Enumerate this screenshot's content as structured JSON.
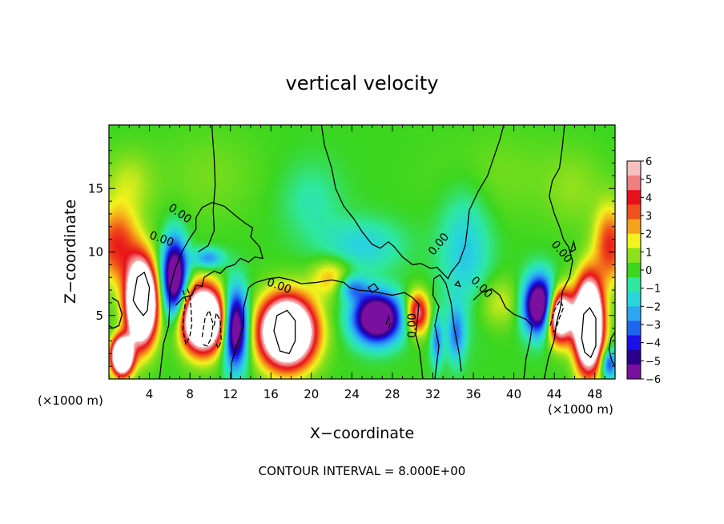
{
  "chart_data": {
    "type": "heatmap",
    "title": "vertical velocity",
    "xlabel": "X−coordinate",
    "ylabel": "Z−coordinate",
    "x_unit_left": "(×1000 m)",
    "x_unit_right": "(×1000 m)",
    "footer": "CONTOUR INTERVAL = 8.000E+00",
    "xlim": [
      0,
      50
    ],
    "ylim": [
      0,
      20
    ],
    "x_ticks": [
      4,
      8,
      12,
      16,
      20,
      24,
      28,
      32,
      36,
      40,
      44,
      48
    ],
    "y_ticks": [
      5,
      10,
      15
    ],
    "colorbar": {
      "min": -6,
      "max": 6,
      "labels": [
        "6",
        "5",
        "4",
        "3",
        "2",
        "1",
        "0",
        "−1",
        "−2",
        "−3",
        "−4",
        "−5",
        "−6"
      ],
      "colors": [
        "#7a0fa0",
        "#2a008a",
        "#1a10e8",
        "#1e66f0",
        "#2ea6f2",
        "#28d6dc",
        "#2ee8a0",
        "#3bd61f",
        "#8ce01c",
        "#f2f21c",
        "#f6a21a",
        "#f0501a",
        "#e8101a",
        "#f08080",
        "#f6c0c0"
      ]
    },
    "contour_labels": [
      {
        "text": "0.00",
        "x": 7.0,
        "y": 13.0,
        "angle": 35
      },
      {
        "text": "0.00",
        "x": 5.2,
        "y": 11.0,
        "angle": 20
      },
      {
        "text": "0.00",
        "x": 16.8,
        "y": 7.3,
        "angle": 20
      },
      {
        "text": "0.00",
        "x": 30.0,
        "y": 4.2,
        "angle": -90
      },
      {
        "text": "0.00",
        "x": 32.6,
        "y": 10.6,
        "angle": -50
      },
      {
        "text": "0.00",
        "x": 36.8,
        "y": 7.2,
        "angle": 45
      },
      {
        "text": "0.00",
        "x": 44.7,
        "y": 10.0,
        "angle": 50
      }
    ],
    "features": [
      {
        "x": 3.2,
        "z": 6.0,
        "rx": 1.4,
        "rz": 3.0,
        "w": 16
      },
      {
        "x": 1.3,
        "z": 1.8,
        "rx": 1.0,
        "rz": 1.4,
        "w": 14
      },
      {
        "x": 0.8,
        "z": 10.5,
        "rx": 2.2,
        "rz": 3.0,
        "w": 4
      },
      {
        "x": 9.3,
        "z": 4.7,
        "rx": 2.0,
        "rz": 2.4,
        "w": 14
      },
      {
        "x": 6.5,
        "z": 8.0,
        "rx": 1.2,
        "rz": 3.0,
        "w": -8
      },
      {
        "x": 12.5,
        "z": 4.0,
        "rx": 1.2,
        "rz": 3.0,
        "w": -8
      },
      {
        "x": 9.8,
        "z": 9.5,
        "rx": 1.5,
        "rz": 0.8,
        "w": -3
      },
      {
        "x": 17.6,
        "z": 3.7,
        "rx": 2.6,
        "rz": 2.6,
        "w": 14
      },
      {
        "x": 22.0,
        "z": 8.0,
        "rx": 2.0,
        "rz": 1.5,
        "w": 2.5
      },
      {
        "x": 26.5,
        "z": 4.8,
        "rx": 2.3,
        "rz": 1.9,
        "w": -9
      },
      {
        "x": 24.0,
        "z": 7.2,
        "rx": 1.5,
        "rz": 1.0,
        "w": -3
      },
      {
        "x": 30.5,
        "z": 5.2,
        "rx": 1.1,
        "rz": 1.6,
        "w": 5.5
      },
      {
        "x": 32.4,
        "z": 3.0,
        "rx": 0.6,
        "rz": 2.0,
        "w": -3
      },
      {
        "x": 34.3,
        "z": 3.5,
        "rx": 0.9,
        "rz": 2.2,
        "w": -3
      },
      {
        "x": 35.2,
        "z": 10.0,
        "rx": 2.5,
        "rz": 5.0,
        "w": -2
      },
      {
        "x": 25.0,
        "z": 10.5,
        "rx": 4.0,
        "rz": 2.0,
        "w": -1.8
      },
      {
        "x": 20.0,
        "z": 14.0,
        "rx": 3.0,
        "rz": 3.0,
        "w": -1.0
      },
      {
        "x": 38.5,
        "z": 6.0,
        "rx": 2.5,
        "rz": 2.0,
        "w": 1.5
      },
      {
        "x": 42.6,
        "z": 5.8,
        "rx": 1.6,
        "rz": 2.2,
        "w": -9
      },
      {
        "x": 44.5,
        "z": 5.0,
        "rx": 1.3,
        "rz": 2.0,
        "w": 11
      },
      {
        "x": 47.4,
        "z": 4.3,
        "rx": 1.3,
        "rz": 3.3,
        "w": 16
      },
      {
        "x": 49.5,
        "z": 10.5,
        "rx": 1.5,
        "rz": 3.0,
        "w": 4
      },
      {
        "x": 49.4,
        "z": 1.2,
        "rx": 0.8,
        "rz": 1.2,
        "w": -4
      },
      {
        "x": 10.0,
        "z": 16.0,
        "rx": 5.0,
        "rz": 3.5,
        "w": 0.6
      },
      {
        "x": 38.0,
        "z": 16.0,
        "rx": 6.0,
        "rz": 3.5,
        "w": 0.6
      },
      {
        "x": 46.0,
        "z": 15.0,
        "rx": 3.0,
        "rz": 3.0,
        "w": 0.8
      },
      {
        "x": 2.0,
        "z": 15.5,
        "rx": 2.5,
        "rz": 2.5,
        "w": 1.2
      }
    ],
    "contours": [
      {
        "style": "solid",
        "points": [
          [
            12.1,
            0
          ],
          [
            12.1,
            1.2
          ],
          [
            12.6,
            2.6
          ],
          [
            13.3,
            4.2
          ],
          [
            13.3,
            5.6
          ],
          [
            13.8,
            7.2
          ],
          [
            14.5,
            7.6
          ],
          [
            15.8,
            7.9
          ],
          [
            16.8,
            8.0
          ],
          [
            18.0,
            7.8
          ],
          [
            19.0,
            7.5
          ],
          [
            20.5,
            7.6
          ],
          [
            22.0,
            7.8
          ],
          [
            23.2,
            7.6
          ],
          [
            23.8,
            7.2
          ],
          [
            24.6,
            7.0
          ],
          [
            26.0,
            6.9
          ],
          [
            28.0,
            6.6
          ],
          [
            29.2,
            6.8
          ],
          [
            30.0,
            6.4
          ],
          [
            30.6,
            5.9
          ],
          [
            30.5,
            4.8
          ],
          [
            30.3,
            3.5
          ],
          [
            30.7,
            2.2
          ],
          [
            30.9,
            0.8
          ],
          [
            31.0,
            0
          ]
        ]
      },
      {
        "style": "solid",
        "points": [
          [
            5.0,
            0
          ],
          [
            5.2,
            1.4
          ],
          [
            5.4,
            2.8
          ],
          [
            5.9,
            4.2
          ],
          [
            6.0,
            5.6
          ],
          [
            6.0,
            7.0
          ],
          [
            6.5,
            8.6
          ],
          [
            7.2,
            10.0
          ],
          [
            8.0,
            11.1
          ],
          [
            8.6,
            11.8
          ],
          [
            8.6,
            12.7
          ],
          [
            9.2,
            13.5
          ],
          [
            10.2,
            13.9
          ],
          [
            11.4,
            13.6
          ],
          [
            12.6,
            12.8
          ],
          [
            13.4,
            12.3
          ],
          [
            14.2,
            11.9
          ],
          [
            14.0,
            11.2
          ],
          [
            14.9,
            10.4
          ],
          [
            15.2,
            9.5
          ],
          [
            14.4,
            9.6
          ],
          [
            13.8,
            9.2
          ],
          [
            13.0,
            9.5
          ],
          [
            12.4,
            9.0
          ],
          [
            11.6,
            8.8
          ],
          [
            11.0,
            8.3
          ],
          [
            10.4,
            8.5
          ],
          [
            9.4,
            8.0
          ],
          [
            9.2,
            7.3
          ],
          [
            8.6,
            7.4
          ],
          [
            8.2,
            6.6
          ],
          [
            7.3,
            6.4
          ],
          [
            6.6,
            5.8
          ]
        ]
      },
      {
        "style": "solid",
        "points": [
          [
            8.8,
            10.0
          ],
          [
            9.8,
            10.5
          ],
          [
            10.4,
            11.7
          ],
          [
            10.3,
            13.3
          ],
          [
            10.5,
            15.3
          ],
          [
            10.4,
            17.3
          ],
          [
            10.2,
            19.6
          ],
          [
            10.2,
            20.0
          ]
        ]
      },
      {
        "style": "solid",
        "points": [
          [
            21.0,
            20.0
          ],
          [
            21.3,
            18.4
          ],
          [
            22.0,
            16.6
          ],
          [
            22.4,
            15.0
          ],
          [
            23.2,
            13.6
          ],
          [
            24.2,
            12.6
          ],
          [
            25.0,
            11.6
          ],
          [
            26.0,
            10.6
          ],
          [
            26.8,
            10.3
          ],
          [
            27.6,
            10.8
          ],
          [
            28.2,
            10.4
          ],
          [
            29.0,
            9.6
          ],
          [
            30.0,
            9.0
          ],
          [
            30.8,
            9.1
          ],
          [
            31.8,
            8.7
          ],
          [
            32.4,
            8.8
          ],
          [
            33.5,
            7.9
          ],
          [
            33.8,
            8.4
          ],
          [
            34.6,
            9.2
          ],
          [
            35.2,
            10.5
          ],
          [
            35.4,
            11.8
          ],
          [
            35.6,
            13.3
          ],
          [
            36.5,
            14.8
          ],
          [
            37.4,
            16.0
          ],
          [
            38.0,
            17.4
          ],
          [
            38.6,
            18.8
          ],
          [
            39.0,
            20.0
          ]
        ]
      },
      {
        "style": "solid",
        "points": [
          [
            45.0,
            20.0
          ],
          [
            44.8,
            18.3
          ],
          [
            44.5,
            16.6
          ],
          [
            43.8,
            15.6
          ],
          [
            43.5,
            14.4
          ],
          [
            44.0,
            13.0
          ],
          [
            44.5,
            12.0
          ],
          [
            44.9,
            11.0
          ],
          [
            45.4,
            10.4
          ],
          [
            45.8,
            9.3
          ],
          [
            45.5,
            8.0
          ],
          [
            44.8,
            6.9
          ],
          [
            44.6,
            5.6
          ],
          [
            44.2,
            4.4
          ],
          [
            44.0,
            3.1
          ],
          [
            43.4,
            1.6
          ],
          [
            43.0,
            0
          ]
        ]
      },
      {
        "style": "solid",
        "points": [
          [
            36.0,
            6.2
          ],
          [
            36.8,
            6.8
          ],
          [
            37.8,
            7.1
          ],
          [
            38.6,
            6.6
          ],
          [
            39.2,
            5.6
          ],
          [
            40.0,
            5.1
          ],
          [
            41.2,
            4.7
          ],
          [
            41.8,
            4.2
          ],
          [
            41.6,
            3.0
          ],
          [
            41.2,
            1.6
          ],
          [
            41.0,
            0
          ]
        ]
      },
      {
        "style": "solid",
        "points": [
          [
            32.2,
            0
          ],
          [
            32.4,
            1.3
          ],
          [
            32.6,
            2.6
          ],
          [
            32.2,
            4.2
          ],
          [
            32.6,
            5.7
          ],
          [
            32.0,
            6.6
          ],
          [
            32.1,
            7.9
          ],
          [
            32.7,
            8.2
          ],
          [
            33.3,
            7.5
          ],
          [
            33.8,
            6.0
          ],
          [
            34.1,
            4.1
          ],
          [
            34.6,
            2.0
          ],
          [
            34.8,
            0.6
          ]
        ]
      },
      {
        "style": "solid",
        "points": [
          [
            0.3,
            6.4
          ],
          [
            0.9,
            6.1
          ],
          [
            1.3,
            5.1
          ],
          [
            1.0,
            4.2
          ],
          [
            0.4,
            4.0
          ],
          [
            0,
            4.2
          ]
        ]
      },
      {
        "style": "solid",
        "points": [
          [
            50.0,
            3.7
          ],
          [
            49.6,
            3.2
          ],
          [
            49.4,
            2.3
          ],
          [
            49.7,
            1.4
          ],
          [
            50.0,
            1.0
          ]
        ]
      },
      {
        "style": "solid",
        "closed": true,
        "points": [
          [
            2.4,
            6.2
          ],
          [
            2.8,
            8.0
          ],
          [
            3.5,
            8.4
          ],
          [
            4.0,
            7.2
          ],
          [
            3.8,
            5.4
          ],
          [
            3.4,
            5.0
          ],
          [
            2.8,
            5.6
          ]
        ]
      },
      {
        "style": "solid",
        "closed": true,
        "points": [
          [
            16.3,
            3.8
          ],
          [
            16.6,
            5.0
          ],
          [
            17.6,
            5.4
          ],
          [
            18.4,
            4.6
          ],
          [
            18.4,
            3.0
          ],
          [
            17.8,
            2.0
          ],
          [
            16.9,
            2.2
          ]
        ]
      },
      {
        "style": "solid",
        "closed": true,
        "points": [
          [
            46.7,
            3.2
          ],
          [
            46.9,
            5.1
          ],
          [
            47.5,
            5.6
          ],
          [
            48.1,
            4.8
          ],
          [
            48.1,
            2.6
          ],
          [
            47.6,
            1.7
          ],
          [
            47.0,
            2.1
          ]
        ]
      },
      {
        "style": "solid",
        "closed": true,
        "points": [
          [
            25.6,
            7.2
          ],
          [
            26.2,
            7.5
          ],
          [
            26.6,
            7.1
          ],
          [
            26.0,
            6.8
          ]
        ]
      },
      {
        "style": "solid",
        "closed": true,
        "points": [
          [
            45.6,
            10.0
          ],
          [
            45.9,
            10.8
          ],
          [
            46.1,
            10.2
          ]
        ]
      },
      {
        "style": "solid",
        "closed": true,
        "points": [
          [
            34.2,
            7.4
          ],
          [
            34.5,
            7.7
          ],
          [
            34.7,
            7.3
          ]
        ]
      },
      {
        "style": "dashed",
        "points": [
          [
            7.3,
            7.0
          ],
          [
            7.6,
            6.2
          ],
          [
            7.4,
            5.2
          ],
          [
            7.3,
            3.9
          ],
          [
            7.6,
            2.7
          ],
          [
            8.0,
            3.4
          ],
          [
            8.2,
            4.3
          ],
          [
            8.1,
            5.6
          ],
          [
            8.0,
            6.6
          ],
          [
            7.7,
            7.2
          ]
        ]
      },
      {
        "style": "dashed",
        "points": [
          [
            9.2,
            3.3
          ],
          [
            9.5,
            4.8
          ],
          [
            9.9,
            5.4
          ],
          [
            10.3,
            4.3
          ],
          [
            10.1,
            3.2
          ],
          [
            9.7,
            2.6
          ],
          [
            9.3,
            2.7
          ]
        ]
      },
      {
        "style": "dashed",
        "points": [
          [
            10.4,
            4.2
          ],
          [
            10.6,
            5.2
          ],
          [
            11.0,
            4.6
          ],
          [
            11.1,
            3.0
          ],
          [
            10.8,
            2.4
          ],
          [
            10.5,
            3.0
          ]
        ]
      },
      {
        "style": "dashed",
        "points": [
          [
            43.6,
            4.2
          ],
          [
            44.0,
            5.4
          ],
          [
            44.6,
            6.2
          ],
          [
            44.9,
            5.6
          ],
          [
            44.5,
            4.8
          ],
          [
            44.1,
            3.8
          ],
          [
            43.7,
            3.7
          ]
        ]
      },
      {
        "style": "dashed",
        "points": [
          [
            27.4,
            4.3
          ],
          [
            27.6,
            4.9
          ],
          [
            27.8,
            4.4
          ],
          [
            27.6,
            3.9
          ]
        ]
      }
    ]
  }
}
